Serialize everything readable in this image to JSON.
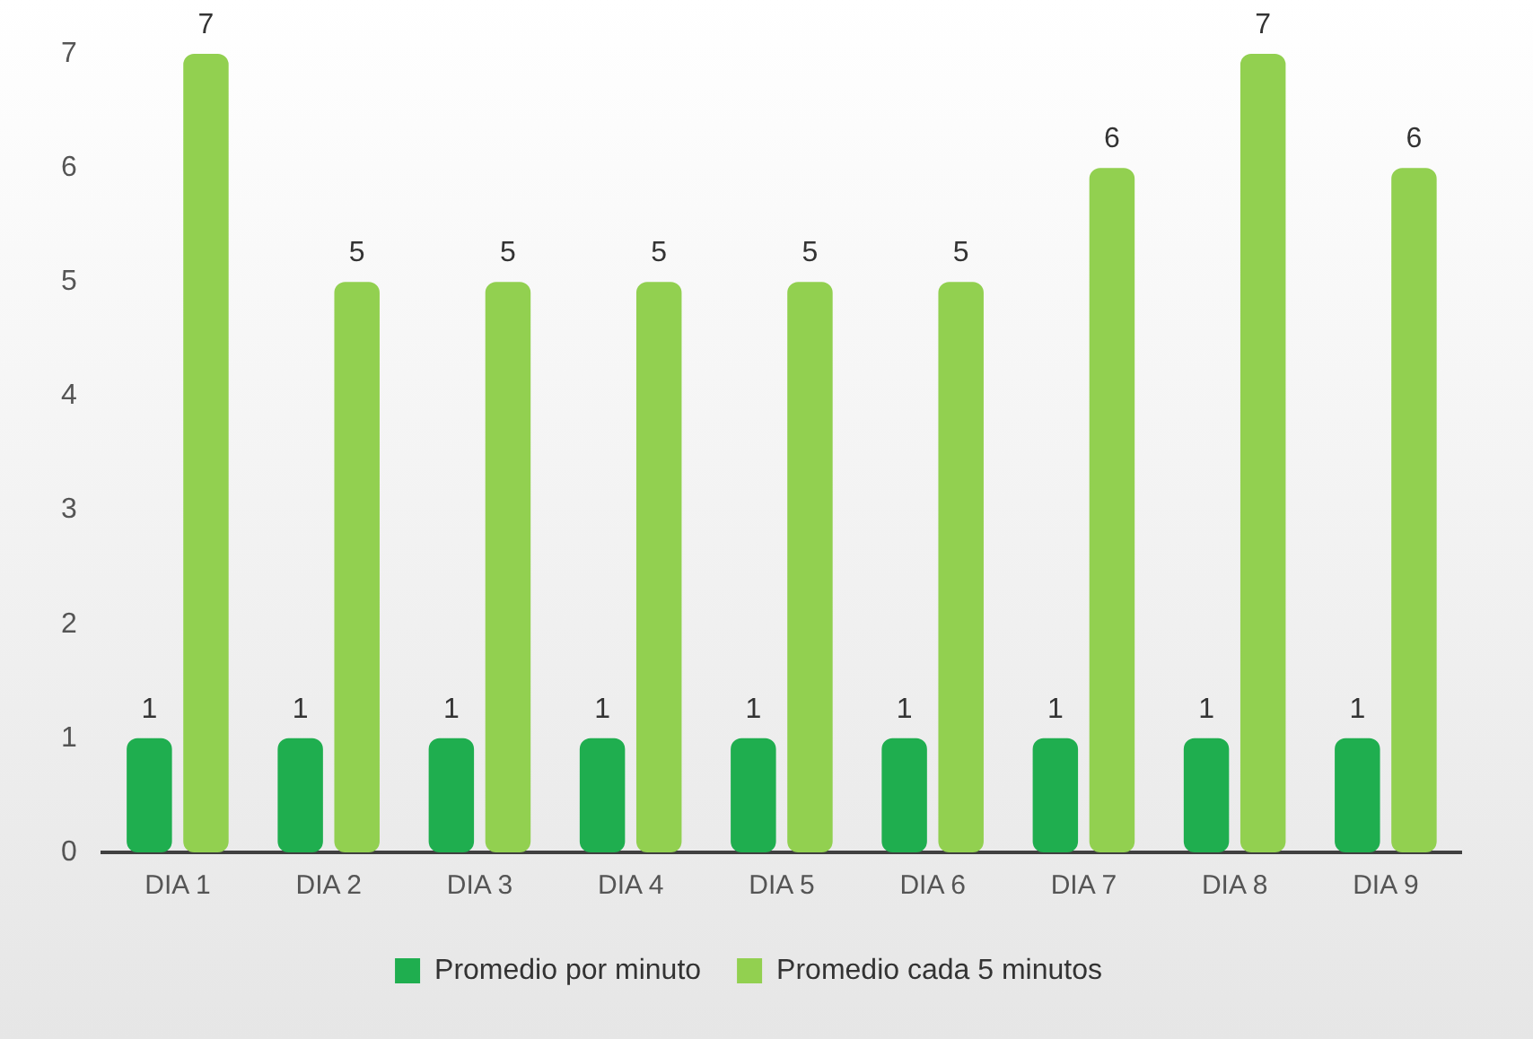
{
  "chart_data": {
    "type": "bar",
    "categories": [
      "DIA 1",
      "DIA 2",
      "DIA 3",
      "DIA 4",
      "DIA 5",
      "DIA 6",
      "DIA 7",
      "DIA 8",
      "DIA 9"
    ],
    "series": [
      {
        "name": "Promedio por minuto",
        "color": "#1fae4f",
        "values": [
          1,
          1,
          1,
          1,
          1,
          1,
          1,
          1,
          1
        ]
      },
      {
        "name": "Promedio cada 5 minutos",
        "color": "#92d050",
        "values": [
          7,
          5,
          5,
          5,
          5,
          5,
          6,
          7,
          6
        ]
      }
    ],
    "ylim": [
      0,
      7
    ],
    "yticks": [
      0,
      1,
      2,
      3,
      4,
      5,
      6,
      7
    ],
    "grid": false,
    "legend": "bottom",
    "data_labels": true
  }
}
